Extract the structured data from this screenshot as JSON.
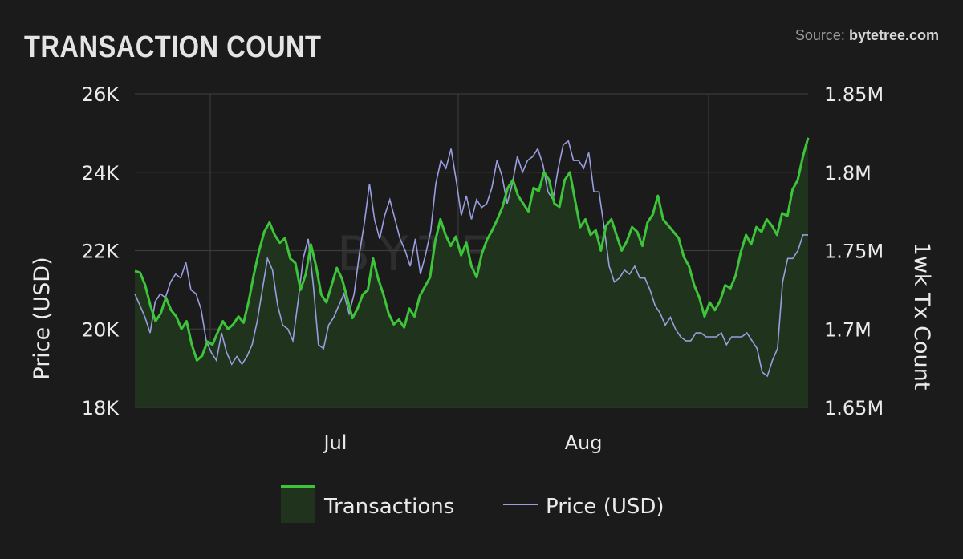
{
  "header": {
    "title": "TRANSACTION COUNT",
    "source_label": "Source:",
    "source_site": "bytetree.com"
  },
  "watermark": "BYTETREE",
  "colors": {
    "background": "#1b1b1b",
    "grid": "#3a3a3a",
    "transactions_line": "#3ec43a",
    "transactions_fill": "#1f331d",
    "price_line": "#9a9ee0"
  },
  "chart_data": {
    "type": "line",
    "x_ticks": [
      "Jul",
      "Aug"
    ],
    "left_axis": {
      "label": "Price (USD)",
      "ticks": [
        "26K",
        "24K",
        "22K",
        "20K",
        "18K"
      ],
      "range": [
        18000,
        26000
      ]
    },
    "right_axis": {
      "label": "1wk Tx Count",
      "ticks": [
        "1.85M",
        "1.8M",
        "1.75M",
        "1.7M",
        "1.65M"
      ],
      "range": [
        1650000,
        1850000
      ]
    },
    "grid": true,
    "legend_position": "bottom",
    "series": [
      {
        "name": "Transactions",
        "axis": "right",
        "style": "area",
        "values": [
          1737000,
          1736000,
          1728000,
          1715000,
          1705000,
          1710000,
          1720000,
          1712000,
          1708000,
          1700000,
          1705000,
          1690000,
          1680000,
          1683000,
          1692000,
          1690000,
          1698000,
          1705000,
          1700000,
          1703000,
          1708000,
          1704000,
          1718000,
          1735000,
          1750000,
          1762000,
          1768000,
          1760000,
          1755000,
          1758000,
          1745000,
          1742000,
          1725000,
          1735000,
          1754000,
          1740000,
          1722000,
          1717000,
          1728000,
          1739000,
          1732000,
          1720000,
          1707000,
          1713000,
          1722000,
          1725000,
          1745000,
          1732000,
          1722000,
          1710000,
          1703000,
          1706000,
          1701000,
          1713000,
          1708000,
          1721000,
          1727000,
          1733000,
          1756000,
          1770000,
          1760000,
          1753000,
          1759000,
          1747000,
          1755000,
          1740000,
          1733000,
          1748000,
          1757000,
          1763000,
          1770000,
          1778000,
          1790000,
          1795000,
          1785000,
          1780000,
          1775000,
          1790000,
          1788000,
          1800000,
          1795000,
          1780000,
          1778000,
          1795000,
          1800000,
          1782000,
          1765000,
          1770000,
          1760000,
          1763000,
          1750000,
          1766000,
          1770000,
          1760000,
          1750000,
          1756000,
          1765000,
          1762000,
          1753000,
          1768000,
          1773000,
          1785000,
          1770000,
          1766000,
          1762000,
          1758000,
          1746000,
          1740000,
          1728000,
          1720000,
          1708000,
          1717000,
          1712000,
          1718000,
          1728000,
          1726000,
          1734000,
          1749000,
          1760000,
          1754000,
          1765000,
          1762000,
          1770000,
          1766000,
          1760000,
          1774000,
          1772000,
          1789000,
          1795000,
          1810000,
          1822000
        ]
      },
      {
        "name": "Price (USD)",
        "axis": "left",
        "style": "line",
        "values": [
          20900,
          20600,
          20300,
          19900,
          20700,
          20900,
          20800,
          21200,
          21400,
          21300,
          21700,
          21000,
          20900,
          20500,
          19700,
          19400,
          19200,
          19900,
          19400,
          19100,
          19300,
          19100,
          19300,
          19600,
          20200,
          21000,
          21800,
          21500,
          20600,
          20100,
          20000,
          19700,
          20700,
          21800,
          22300,
          21100,
          19600,
          19500,
          20100,
          20300,
          20600,
          20900,
          20400,
          20900,
          21900,
          22700,
          23700,
          22800,
          22300,
          22900,
          23300,
          22800,
          22300,
          22000,
          21600,
          22300,
          21400,
          21900,
          22500,
          23700,
          24300,
          24100,
          24600,
          23800,
          22900,
          23400,
          22800,
          23300,
          23100,
          23200,
          23600,
          24300,
          23900,
          23200,
          23700,
          24400,
          24000,
          24300,
          24400,
          24600,
          24200,
          23500,
          23300,
          24100,
          24700,
          24800,
          24300,
          24300,
          24100,
          24500,
          23500,
          23500,
          22600,
          21600,
          21200,
          21300,
          21500,
          21400,
          21600,
          21300,
          21300,
          21000,
          20600,
          20400,
          20100,
          20300,
          20000,
          19800,
          19700,
          19700,
          19900,
          19900,
          19800,
          19800,
          19800,
          19900,
          19600,
          19800,
          19800,
          19800,
          19900,
          19700,
          19500,
          18900,
          18800,
          19200,
          19500,
          21200,
          21800,
          21800,
          22000,
          22400,
          22400
        ]
      }
    ]
  },
  "legend": [
    {
      "label": "Transactions"
    },
    {
      "label": "Price (USD)"
    }
  ]
}
